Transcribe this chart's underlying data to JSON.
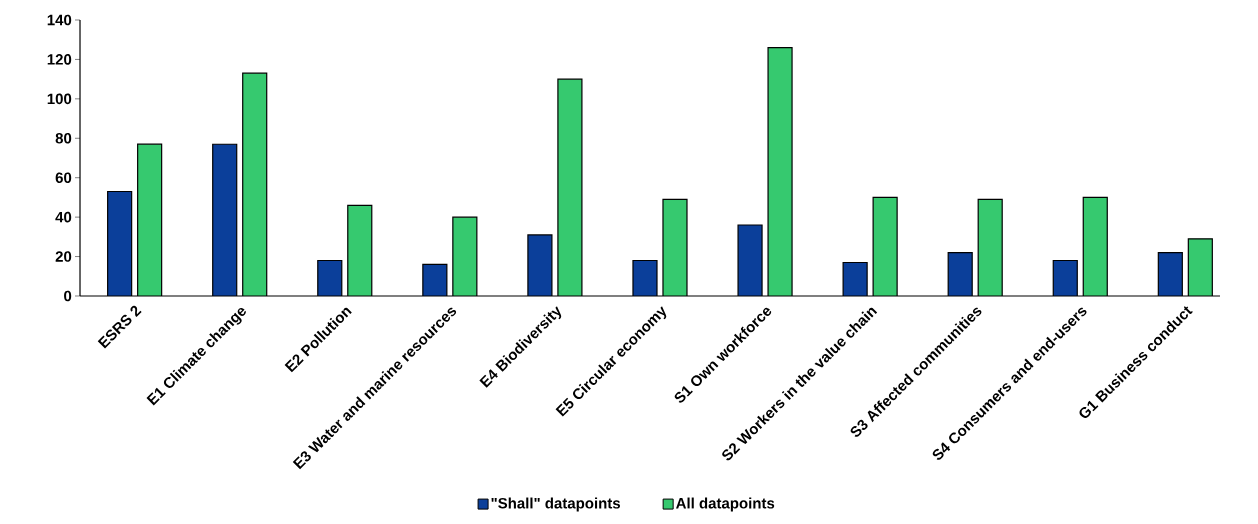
{
  "chart_data": {
    "type": "bar",
    "categories": [
      "ESRS 2",
      "E1 Climate change",
      "E2 Pollution",
      "E3 Water and marine resources",
      "E4 Biodiversity",
      "E5 Circular economy",
      "S1 Own workforce",
      "S2 Workers in the value chain",
      "S3 Affected communities",
      "S4 Consumers and end-users",
      "G1 Business conduct"
    ],
    "series": [
      {
        "name": "\"Shall\"  datapoints",
        "color": "#0b3f9a",
        "values": [
          53,
          77,
          18,
          16,
          31,
          18,
          36,
          17,
          22,
          18,
          22
        ]
      },
      {
        "name": "All datapoints",
        "color": "#36c96f",
        "values": [
          77,
          113,
          46,
          40,
          110,
          49,
          126,
          50,
          49,
          50,
          29
        ]
      }
    ],
    "ylim": [
      0,
      140
    ],
    "yticks": [
      0,
      20,
      40,
      60,
      80,
      100,
      120,
      140
    ],
    "legend": "bottom"
  }
}
